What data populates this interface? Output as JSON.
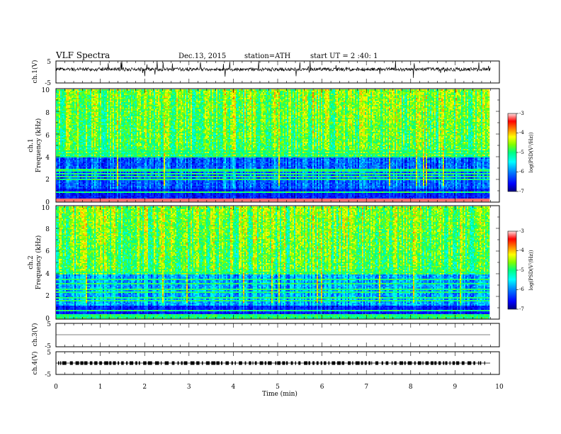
{
  "header": {
    "title": "VLF  Spectra",
    "date": "Dec.13, 2015",
    "station": "station=ATH",
    "start_ut": "start  UT  =   2  :40: 1"
  },
  "colors": {
    "spectrogram_scale": [
      "#000080",
      "#0000ff",
      "#0080ff",
      "#00ffff",
      "#00ff80",
      "#80ff00",
      "#ffff00",
      "#ff8000",
      "#ff0000",
      "#ffffff"
    ]
  },
  "chart_data": [
    {
      "id": "ch1-waveform",
      "type": "line",
      "ylabel": "ch.1(V)",
      "ylim": [
        -5,
        5
      ],
      "yticks": [
        "5",
        "-5"
      ],
      "xlim": [
        0,
        10
      ],
      "baseline_v": 1.2,
      "noise_amplitude_v": 0.8
    },
    {
      "id": "ch1-spectrogram",
      "type": "heatmap",
      "ylabel_top": "ch.1",
      "ylabel": "Frequency  (kHz)",
      "ylim": [
        0,
        10
      ],
      "yticks": [
        "0",
        "2",
        "4",
        "6",
        "8",
        "10"
      ],
      "xlim": [
        0,
        9.8
      ],
      "colorbar": {
        "label": "log(PSD(V²/Hz))",
        "range": [
          -7,
          -3
        ],
        "ticks": [
          "-3",
          "-4",
          "-5",
          "-6",
          "-7"
        ]
      }
    },
    {
      "id": "ch2-spectrogram",
      "type": "heatmap",
      "ylabel_top": "ch.2",
      "ylabel": "Frequency  (kHz)",
      "ylim": [
        0,
        10
      ],
      "yticks": [
        "0",
        "2",
        "4",
        "6",
        "8",
        "10"
      ],
      "xlim": [
        0,
        9.8
      ],
      "colorbar": {
        "label": "log(PSD(V²/Hz))",
        "range": [
          -7,
          -3
        ],
        "ticks": [
          "-3",
          "-4",
          "-5",
          "-6",
          "-7"
        ]
      }
    },
    {
      "id": "ch3-waveform",
      "type": "line",
      "ylabel": "ch.3(V)",
      "ylim": [
        -5,
        5
      ],
      "yticks": [
        "5",
        "-5"
      ],
      "xlim": [
        0,
        10
      ],
      "baseline_v": 0
    },
    {
      "id": "ch4-waveform",
      "type": "line",
      "ylabel": "ch.4(V)",
      "ylim": [
        -5,
        5
      ],
      "yticks": [
        "5",
        "-5"
      ],
      "xlim": [
        0,
        10
      ],
      "baseline_v": 0
    }
  ],
  "x_axis": {
    "label": "Time  (min)",
    "ticks": [
      "0",
      "1",
      "2",
      "3",
      "4",
      "5",
      "6",
      "7",
      "8",
      "9",
      "10"
    ]
  }
}
